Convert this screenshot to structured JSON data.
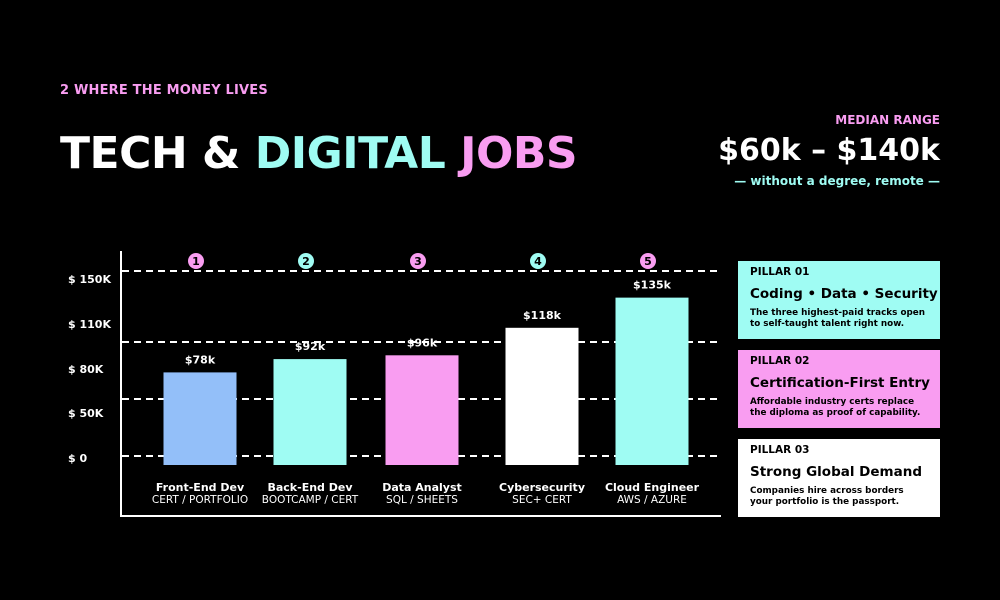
{
  "header": {
    "eyebrow": "2 WHERE THE MONEY LIVES",
    "title_part1": "TECH & ",
    "title_part2": "DIGITAL",
    "title_part3": "JOBS"
  },
  "median": {
    "label": "MEDIAN RANGE",
    "value": "$60k – $140k",
    "note": "— without a degree, remote —"
  },
  "colors": {
    "background": "#000000",
    "pink": "#f99df1",
    "cyan": "#9ffcf3",
    "blue": "#93bff9",
    "white": "#ffffff"
  },
  "chart_data": {
    "type": "bar",
    "categories": [
      "Front-End Dev",
      "Back-End Dev",
      "Data Analyst",
      "Cybersecurity",
      "Cloud Engineer"
    ],
    "subtitles": [
      "CERT / PORTFOLIO",
      "BOOTCAMP / CERT",
      "SQL / SHEETS",
      "SEC+ CERT",
      "AWS / AZURE"
    ],
    "values": [
      78,
      92,
      96,
      118,
      135
    ],
    "value_labels": [
      "$78k",
      "$92k",
      "$96k",
      "$118k",
      "$135k"
    ],
    "ranks": [
      "1",
      "2",
      "3",
      "4",
      "5"
    ],
    "bar_colors": [
      "#93bff9",
      "#9ffcf3",
      "#f99df1",
      "#ffffff",
      "#9ffcf3"
    ],
    "badge_colors": [
      "#f99df1",
      "#9ffcf3",
      "#f99df1",
      "#9ffcf3",
      "#f99df1"
    ],
    "yticks": [
      {
        "value": 0,
        "label": "$ 0"
      },
      {
        "value": 50,
        "label": "$ 50K"
      },
      {
        "value": 80,
        "label": "$ 80K"
      },
      {
        "value": 110,
        "label": "$ 110K"
      },
      {
        "value": 150,
        "label": "$ 150K"
      }
    ],
    "gridlines": [
      0,
      50,
      110,
      150
    ],
    "ylim": [
      0,
      150
    ],
    "grid": true,
    "grid_style": "dashed",
    "xlabel": "",
    "ylabel": ""
  },
  "pillars": [
    {
      "tag": "PILLAR 01",
      "title": "Coding • Data • Security",
      "desc": "The three highest-paid tracks open to self-taught talent right now.",
      "color": "#9ffcf3"
    },
    {
      "tag": "PILLAR 02",
      "title": "Certification-First Entry",
      "desc": "Affordable industry certs replace the diploma as proof of capability.",
      "color": "#f99df1"
    },
    {
      "tag": "PILLAR 03",
      "title": "Strong Global Demand",
      "desc": "Companies hire across borders your portfolio is the passport.",
      "color": "#ffffff"
    }
  ]
}
